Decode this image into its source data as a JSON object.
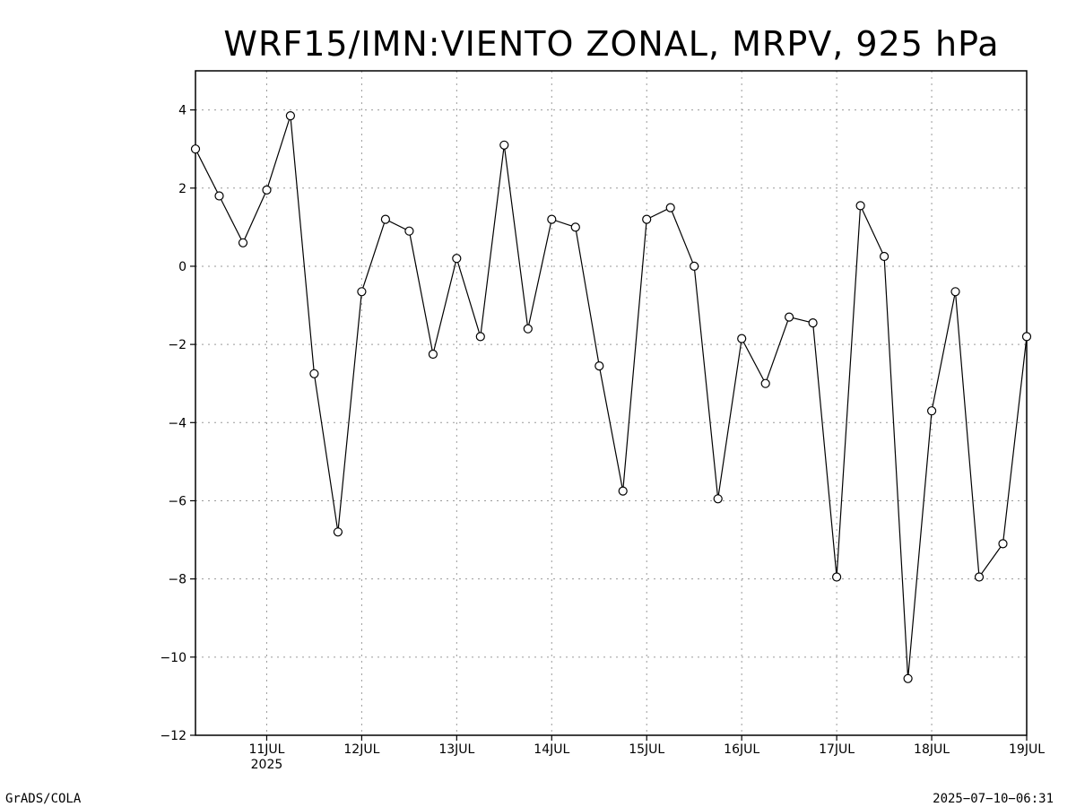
{
  "chart_data": {
    "type": "line",
    "title": "WRF15/IMN:VIENTO ZONAL, MRPV,  925 hPa",
    "xlabel": "",
    "ylabel": "",
    "ylim": [
      -12,
      5
    ],
    "y_ticks": [
      "4",
      "2",
      "0",
      "−2",
      "−4",
      "−6",
      "−8",
      "−10",
      "−12"
    ],
    "y_tick_values": [
      4,
      2,
      0,
      -2,
      -4,
      -6,
      -8,
      -10,
      -12
    ],
    "x_range": [
      "2025-07-10 06:00",
      "2025-07-19 00:00"
    ],
    "x_ticks": [
      {
        "date": "2025-07-11 00:00",
        "label": "11JUL",
        "sublabel": "2025"
      },
      {
        "date": "2025-07-12 00:00",
        "label": "12JUL"
      },
      {
        "date": "2025-07-13 00:00",
        "label": "13JUL"
      },
      {
        "date": "2025-07-14 00:00",
        "label": "14JUL"
      },
      {
        "date": "2025-07-15 00:00",
        "label": "15JUL"
      },
      {
        "date": "2025-07-16 00:00",
        "label": "16JUL"
      },
      {
        "date": "2025-07-17 00:00",
        "label": "17JUL"
      },
      {
        "date": "2025-07-18 00:00",
        "label": "18JUL"
      },
      {
        "date": "2025-07-19 00:00",
        "label": "19JUL"
      }
    ],
    "grid": true,
    "series": [
      {
        "x": [
          "2025-07-10 06:00",
          "2025-07-10 12:00",
          "2025-07-10 18:00",
          "2025-07-11 00:00",
          "2025-07-11 06:00",
          "2025-07-11 12:00",
          "2025-07-11 18:00",
          "2025-07-12 00:00",
          "2025-07-12 06:00",
          "2025-07-12 12:00",
          "2025-07-12 18:00",
          "2025-07-13 00:00",
          "2025-07-13 06:00",
          "2025-07-13 12:00",
          "2025-07-13 18:00",
          "2025-07-14 00:00",
          "2025-07-14 06:00",
          "2025-07-14 12:00",
          "2025-07-14 18:00",
          "2025-07-15 00:00",
          "2025-07-15 06:00",
          "2025-07-15 12:00",
          "2025-07-15 18:00",
          "2025-07-16 00:00",
          "2025-07-16 06:00",
          "2025-07-16 12:00",
          "2025-07-16 18:00",
          "2025-07-17 00:00",
          "2025-07-17 06:00",
          "2025-07-17 12:00",
          "2025-07-17 18:00",
          "2025-07-18 00:00",
          "2025-07-18 06:00",
          "2025-07-18 12:00",
          "2025-07-18 18:00",
          "2025-07-19 00:00"
        ],
        "values": [
          3.0,
          1.8,
          0.6,
          1.95,
          3.85,
          -2.75,
          -6.8,
          -0.65,
          1.2,
          0.9,
          -2.25,
          0.2,
          -1.8,
          3.1,
          -1.6,
          1.2,
          1.0,
          -2.55,
          -5.75,
          1.2,
          1.5,
          0.0,
          -5.95,
          -1.85,
          -3.0,
          -1.3,
          -1.45,
          -7.95,
          1.55,
          0.25,
          -10.55,
          -3.7,
          -0.65,
          -7.95,
          -7.1,
          -1.8
        ]
      }
    ]
  },
  "footer": {
    "left": "GrADS/COLA",
    "right": "2025−07−10−06:31"
  }
}
